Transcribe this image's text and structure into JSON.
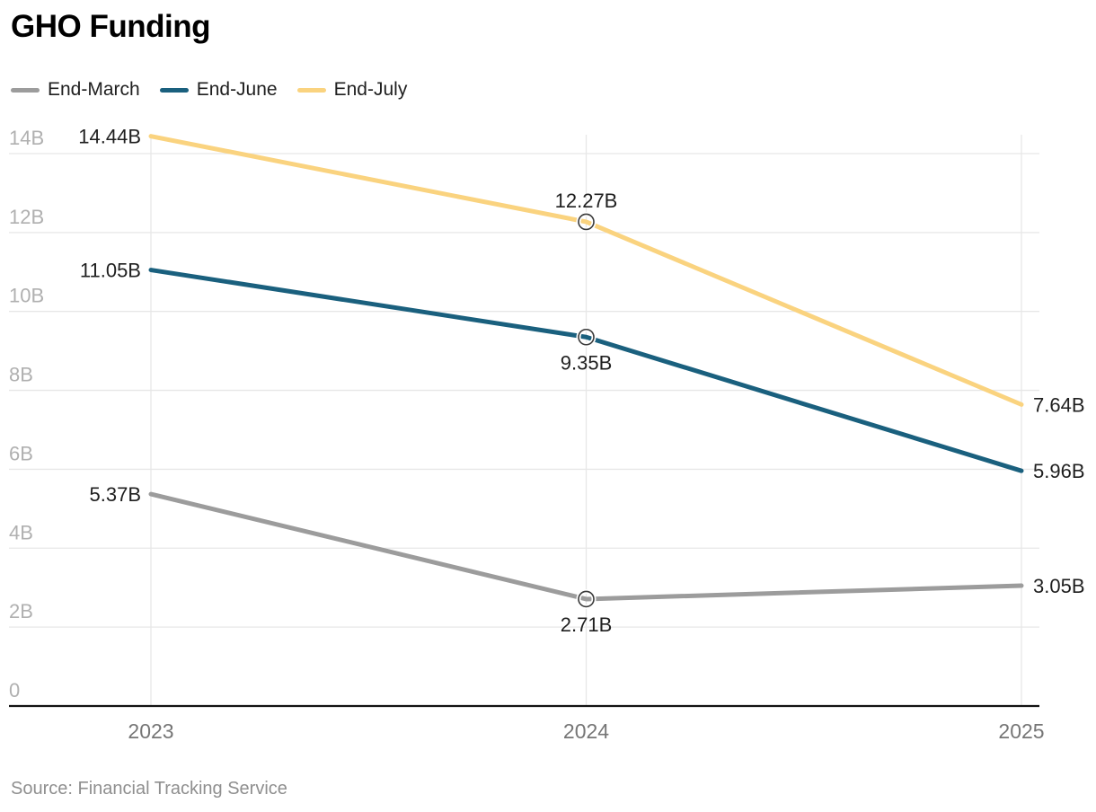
{
  "chart_data": {
    "type": "line",
    "title": "GHO Funding",
    "categories": [
      "2023",
      "2024",
      "2025"
    ],
    "series": [
      {
        "name": "End-March",
        "color": "#9c9c9c",
        "values": [
          5.37,
          2.71,
          3.05
        ],
        "point_labels": [
          "5.37B",
          "2.71B",
          "3.05B"
        ],
        "mid_label_position": "below"
      },
      {
        "name": "End-June",
        "color": "#1a607e",
        "values": [
          11.05,
          9.35,
          5.96
        ],
        "point_labels": [
          "11.05B",
          "9.35B",
          "5.96B"
        ],
        "mid_label_position": "below"
      },
      {
        "name": "End-July",
        "color": "#fad37f",
        "values": [
          14.44,
          12.27,
          7.64
        ],
        "point_labels": [
          "14.44B",
          "12.27B",
          "7.64B"
        ],
        "mid_label_position": "above"
      }
    ],
    "y_ticks": [
      {
        "label": "0",
        "value": 0
      },
      {
        "label": "2B",
        "value": 2
      },
      {
        "label": "4B",
        "value": 4
      },
      {
        "label": "6B",
        "value": 6
      },
      {
        "label": "8B",
        "value": 8
      },
      {
        "label": "10B",
        "value": 10
      },
      {
        "label": "12B",
        "value": 12
      },
      {
        "label": "14B",
        "value": 14
      }
    ],
    "ylim": [
      0,
      14.5
    ],
    "unit": "B",
    "grid": true,
    "legend_position": "top-left",
    "marker_category_index": 1,
    "source": "Source: Financial Tracking Service"
  },
  "colors": {
    "axis_line": "#121212",
    "gridline": "#e7e7e7",
    "y_tick_label": "#b0b0b0",
    "x_tick_label": "#767676",
    "data_label": "#1f1f1f",
    "marker_stroke": "#3a3a3a",
    "marker_halo": "#ffffff"
  }
}
